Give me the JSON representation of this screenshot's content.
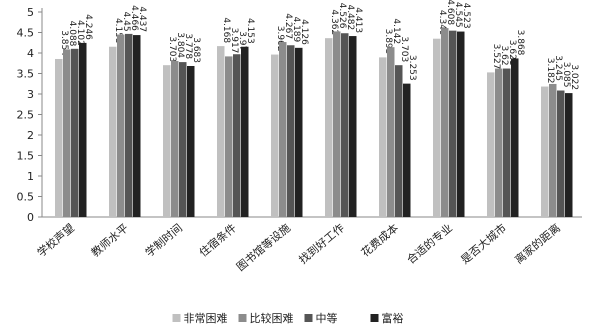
{
  "chart_data": {
    "type": "bar",
    "title": "",
    "xlabel": "",
    "ylabel": "",
    "ylim": [
      0,
      5
    ],
    "yticks": [
      0,
      0.5,
      1,
      1.5,
      2,
      2.5,
      3,
      3.5,
      4,
      4.5,
      5
    ],
    "grid": false,
    "legend_position": "bottom",
    "categories": [
      "学校声望",
      "教师水平",
      "学制时间",
      "住宿条件",
      "图书馆等设施",
      "找到好工作",
      "花费成本",
      "合适的专业",
      "是否大城市",
      "离家的距离"
    ],
    "series": [
      {
        "name": "非常困难",
        "color": "#c0c0c0",
        "values": [
          3.854,
          4.153,
          3.703,
          4.168,
          3.962,
          4.362,
          3.893,
          4.349,
          3.527,
          3.182
        ]
      },
      {
        "name": "比较困难",
        "color": "#8c8c8c",
        "values": [
          4.088,
          4.45,
          3.804,
          3.917,
          4.267,
          4.526,
          4.142,
          4.608,
          3.62,
          3.245
        ]
      },
      {
        "name": "中等",
        "color": "#555555",
        "values": [
          4.102,
          4.466,
          3.778,
          3.97,
          4.189,
          4.482,
          3.703,
          4.545,
          3.621,
          3.085
        ]
      },
      {
        "name": "富裕",
        "color": "#222222",
        "values": [
          4.246,
          4.437,
          3.683,
          4.153,
          4.126,
          4.413,
          3.253,
          4.523,
          3.868,
          3.022
        ]
      }
    ]
  }
}
